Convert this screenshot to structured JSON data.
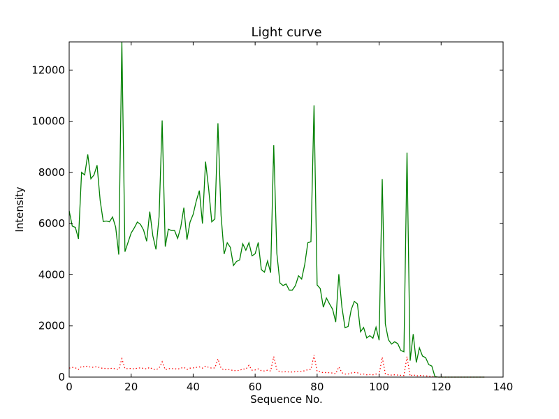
{
  "chart_data": {
    "type": "line",
    "title": "Light curve",
    "xlabel": "Sequence No.",
    "ylabel": "Intensity",
    "xlim": [
      0,
      140
    ],
    "ylim": [
      0,
      13100
    ],
    "xticks": [
      0,
      20,
      40,
      60,
      80,
      100,
      120,
      140
    ],
    "yticks": [
      0,
      2000,
      4000,
      6000,
      8000,
      10000,
      12000
    ],
    "grid": false,
    "legend": "none",
    "series": [
      {
        "color": "#007f00",
        "style": "solid",
        "x": [
          0,
          1,
          2,
          3,
          4,
          5,
          6,
          7,
          8,
          9,
          10,
          11,
          12,
          13,
          14,
          15,
          16,
          17,
          18,
          19,
          20,
          21,
          22,
          23,
          24,
          25,
          26,
          27,
          28,
          29,
          30,
          31,
          32,
          33,
          34,
          35,
          36,
          37,
          38,
          39,
          40,
          41,
          42,
          43,
          44,
          45,
          46,
          47,
          48,
          49,
          50,
          51,
          52,
          53,
          54,
          55,
          56,
          57,
          58,
          59,
          60,
          61,
          62,
          63,
          64,
          65,
          66,
          67,
          68,
          69,
          70,
          71,
          72,
          73,
          74,
          75,
          76,
          77,
          78,
          79,
          80,
          81,
          82,
          83,
          84,
          85,
          86,
          87,
          88,
          89,
          90,
          91,
          92,
          93,
          94,
          95,
          96,
          97,
          98,
          99,
          100,
          101,
          102,
          103,
          104,
          105,
          106,
          107,
          108,
          109,
          110,
          111,
          112,
          113,
          114,
          115,
          116,
          117,
          118,
          119,
          120,
          121,
          122,
          123,
          124,
          125,
          126,
          127,
          128,
          129,
          130,
          131,
          132,
          133,
          134
        ],
        "values": [
          6500,
          5900,
          5850,
          5400,
          8000,
          7900,
          8700,
          7750,
          7900,
          8280,
          6900,
          6080,
          6100,
          6070,
          6260,
          5860,
          4790,
          13100,
          4900,
          5270,
          5630,
          5830,
          6060,
          5970,
          5750,
          5310,
          6470,
          5520,
          4990,
          6260,
          10030,
          5100,
          5780,
          5730,
          5730,
          5420,
          5860,
          6620,
          5370,
          6060,
          6360,
          6880,
          7290,
          6000,
          8420,
          7360,
          6070,
          6180,
          9920,
          6330,
          4810,
          5250,
          5070,
          4360,
          4520,
          4580,
          5210,
          4960,
          5250,
          4740,
          4820,
          5260,
          4200,
          4100,
          4540,
          4080,
          9060,
          4840,
          3680,
          3580,
          3640,
          3400,
          3400,
          3580,
          3960,
          3830,
          4400,
          5250,
          5290,
          10620,
          3600,
          3460,
          2730,
          3090,
          2860,
          2650,
          2150,
          4020,
          2730,
          1930,
          1980,
          2640,
          2960,
          2860,
          1770,
          1940,
          1530,
          1620,
          1520,
          1950,
          1440,
          7740,
          2080,
          1460,
          1290,
          1380,
          1310,
          1040,
          990,
          8770,
          640,
          1680,
          570,
          1140,
          820,
          760,
          490,
          430,
          20,
          0,
          0,
          0,
          0,
          0,
          0,
          0,
          0,
          0,
          0,
          0,
          0,
          0,
          0,
          0,
          0
        ]
      },
      {
        "color": "#ff0000",
        "style": "dotted",
        "x": [
          0,
          1,
          2,
          3,
          4,
          5,
          6,
          7,
          8,
          9,
          10,
          11,
          12,
          13,
          14,
          15,
          16,
          17,
          18,
          19,
          20,
          21,
          22,
          23,
          24,
          25,
          26,
          27,
          28,
          29,
          30,
          31,
          32,
          33,
          34,
          35,
          36,
          37,
          38,
          39,
          40,
          41,
          42,
          43,
          44,
          45,
          46,
          47,
          48,
          49,
          50,
          51,
          52,
          53,
          54,
          55,
          56,
          57,
          58,
          59,
          60,
          61,
          62,
          63,
          64,
          65,
          66,
          67,
          68,
          69,
          70,
          71,
          72,
          73,
          74,
          75,
          76,
          77,
          78,
          79,
          80,
          81,
          82,
          83,
          84,
          85,
          86,
          87,
          88,
          89,
          90,
          91,
          92,
          93,
          94,
          95,
          96,
          97,
          98,
          99,
          100,
          101,
          102,
          103,
          104,
          105,
          106,
          107,
          108,
          109,
          110,
          111,
          112,
          113,
          114,
          115,
          116,
          117,
          118,
          119,
          120,
          121,
          122,
          123,
          124,
          125,
          126,
          127,
          128,
          129,
          130,
          131,
          132,
          133,
          134
        ],
        "values": [
          350,
          380,
          360,
          300,
          420,
          400,
          430,
          380,
          390,
          410,
          360,
          340,
          340,
          330,
          350,
          320,
          300,
          720,
          330,
          330,
          340,
          320,
          350,
          360,
          340,
          320,
          380,
          310,
          290,
          350,
          600,
          290,
          330,
          330,
          330,
          310,
          350,
          380,
          300,
          350,
          360,
          380,
          400,
          350,
          430,
          380,
          350,
          360,
          710,
          350,
          280,
          300,
          290,
          250,
          260,
          260,
          320,
          310,
          460,
          270,
          280,
          320,
          250,
          240,
          270,
          240,
          800,
          280,
          210,
          200,
          210,
          200,
          200,
          210,
          230,
          220,
          250,
          290,
          300,
          860,
          220,
          210,
          170,
          180,
          170,
          160,
          130,
          400,
          170,
          120,
          120,
          160,
          180,
          170,
          110,
          120,
          90,
          100,
          90,
          120,
          90,
          780,
          130,
          90,
          80,
          90,
          80,
          70,
          60,
          800,
          40,
          100,
          40,
          70,
          50,
          50,
          30,
          30,
          0,
          0,
          0,
          0,
          0,
          0,
          0,
          0,
          0,
          0,
          0,
          0,
          0,
          0,
          0,
          0,
          0
        ]
      }
    ]
  }
}
